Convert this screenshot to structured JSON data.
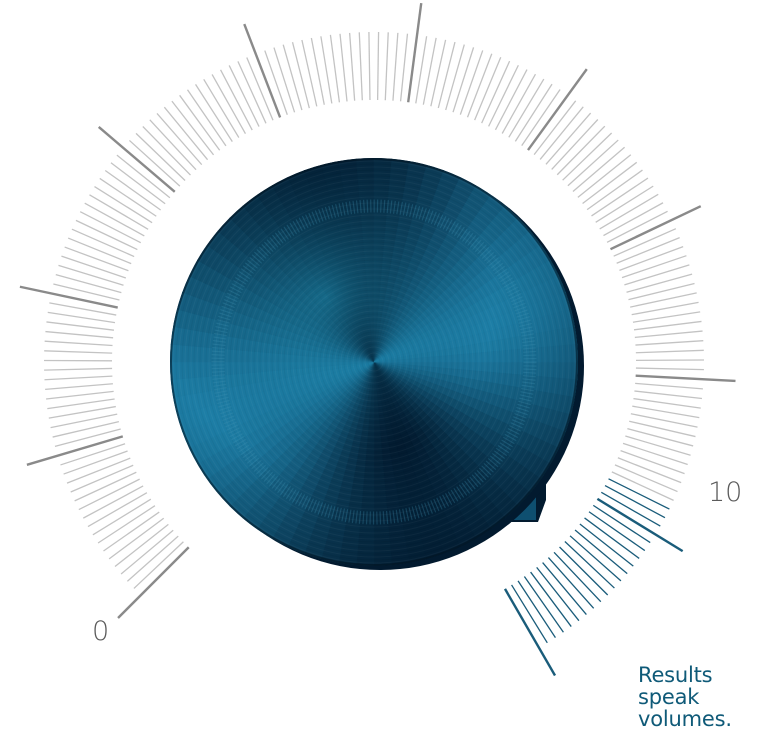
{
  "dial": {
    "min_label": "0",
    "max_label": "10",
    "level": 10,
    "level_max": 10,
    "colors": {
      "tick_inactive": "#c3c3c3",
      "tick_major": "#8a8a8a",
      "tick_active": "#1a5c7a",
      "knob_base": "#0b4562",
      "knob_dark": "#021a2f",
      "knob_light": "#1d7ea6"
    }
  },
  "tagline": {
    "line1": "Results",
    "line2": "speak",
    "line3": "volumes."
  }
}
